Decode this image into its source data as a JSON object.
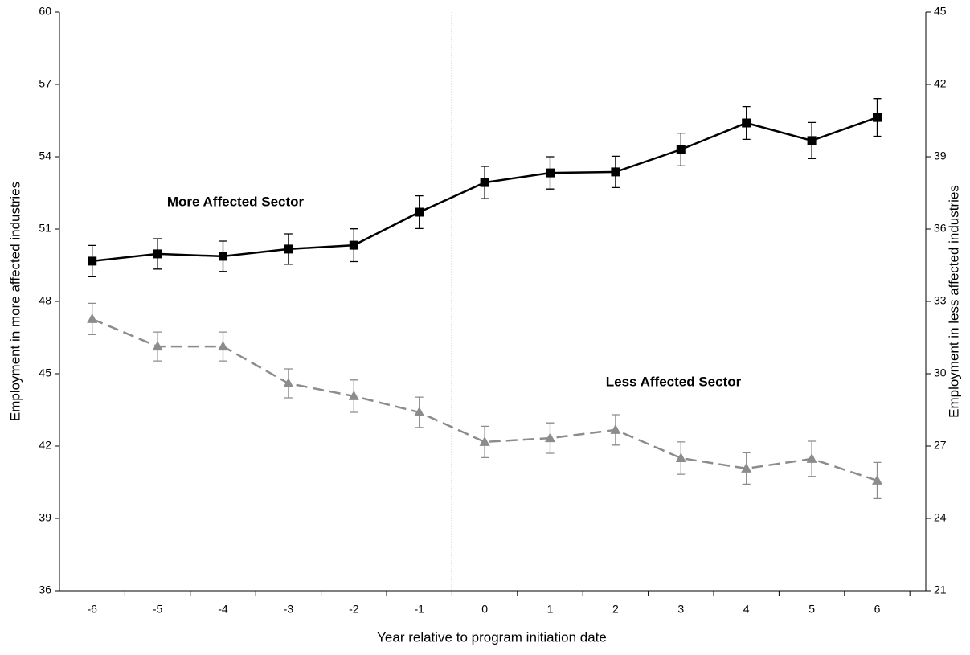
{
  "chart_data": {
    "type": "line",
    "x_label": "Year relative to program initiation date",
    "y_label": "Employment in more affected industries",
    "y2_label": "Employment in less affected industries",
    "categories": [
      "-6",
      "-5",
      "-4",
      "-3",
      "-2",
      "-1",
      "0",
      "1",
      "2",
      "3",
      "4",
      "5",
      "6"
    ],
    "series": [
      {
        "name": "More Affected Sector",
        "color": "#000000",
        "dash": false,
        "marker": "square",
        "values": [
          49.67,
          49.97,
          49.87,
          50.17,
          50.33,
          51.7,
          52.93,
          53.33,
          53.37,
          54.3,
          55.4,
          54.67,
          55.63
        ],
        "errors": [
          0.65,
          0.63,
          0.63,
          0.63,
          0.68,
          0.68,
          0.67,
          0.67,
          0.65,
          0.68,
          0.68,
          0.75,
          0.78
        ]
      },
      {
        "name": "Less Affected Sector",
        "color": "#8c8c8c",
        "dash": true,
        "marker": "triangle",
        "axis": "y2",
        "values": [
          32.27,
          31.13,
          31.13,
          29.6,
          29.07,
          28.4,
          27.17,
          27.33,
          27.67,
          26.5,
          26.07,
          26.47,
          25.57
        ],
        "errors": [
          0.65,
          0.6,
          0.6,
          0.6,
          0.67,
          0.63,
          0.65,
          0.63,
          0.63,
          0.67,
          0.65,
          0.73,
          0.75
        ]
      }
    ],
    "ylim": [
      36,
      60
    ],
    "yticks": [
      36,
      39,
      42,
      45,
      48,
      51,
      54,
      57,
      60
    ],
    "y2lim": [
      21,
      45
    ],
    "y2ticks": [
      21,
      24,
      27,
      30,
      33,
      36,
      39,
      42,
      45
    ]
  }
}
